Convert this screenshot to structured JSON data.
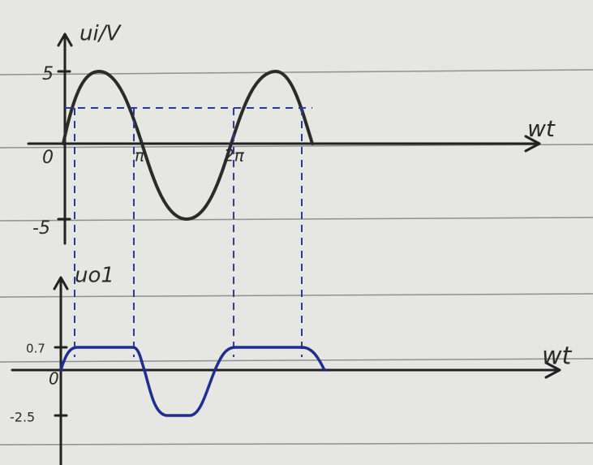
{
  "top_graph": {
    "y_label": "ui/V",
    "y_top": "5",
    "origin": "0",
    "y_bottom": "-5",
    "x_mark_1": "π",
    "x_mark_2": "2π",
    "x_label": "wt"
  },
  "bottom_graph": {
    "y_label": "uo1",
    "y_top": "0.7",
    "origin": "0",
    "y_bottom": "-2.5",
    "x_label": "wt"
  }
}
